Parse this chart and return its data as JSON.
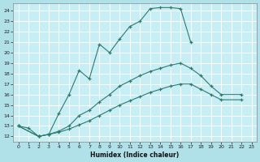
{
  "xlabel": "Humidex (Indice chaleur)",
  "bg_color": "#b0e0e8",
  "plot_bg_color": "#c8eef5",
  "line_color": "#2d7a6e",
  "grid_color": "#ffffff",
  "xlim": [
    -0.5,
    23.5
  ],
  "ylim": [
    11.5,
    24.7
  ],
  "xticks": [
    0,
    1,
    2,
    3,
    4,
    5,
    6,
    7,
    8,
    9,
    10,
    11,
    12,
    13,
    14,
    15,
    16,
    17,
    18,
    19,
    20,
    21,
    22,
    23
  ],
  "yticks": [
    12,
    13,
    14,
    15,
    16,
    17,
    18,
    19,
    20,
    21,
    22,
    23,
    24
  ],
  "line1_x": [
    0,
    1,
    2,
    3,
    4,
    5,
    6,
    7,
    8,
    9,
    10,
    11,
    12,
    13,
    14,
    15,
    16,
    17
  ],
  "line1_y": [
    13.0,
    12.8,
    12.0,
    12.2,
    14.2,
    16.0,
    18.3,
    17.5,
    20.8,
    20.0,
    21.3,
    22.5,
    23.0,
    24.2,
    24.3,
    24.3,
    24.2,
    21.0
  ],
  "line2_x": [
    0,
    2,
    3,
    4,
    5,
    6,
    7,
    8,
    9,
    10,
    11,
    12,
    13,
    14,
    15,
    16,
    17,
    18,
    19,
    20,
    22
  ],
  "line2_y": [
    13.0,
    12.0,
    12.2,
    12.5,
    13.0,
    14.0,
    14.5,
    15.3,
    16.0,
    16.8,
    17.3,
    17.8,
    18.2,
    18.5,
    18.8,
    19.0,
    18.5,
    17.8,
    16.8,
    16.0,
    16.0
  ],
  "line3_x": [
    0,
    2,
    3,
    4,
    5,
    6,
    7,
    8,
    9,
    10,
    11,
    12,
    13,
    14,
    15,
    16,
    17,
    18,
    19,
    20,
    22
  ],
  "line3_y": [
    13.0,
    12.0,
    12.2,
    12.4,
    12.7,
    13.1,
    13.5,
    14.0,
    14.5,
    15.0,
    15.4,
    15.8,
    16.2,
    16.5,
    16.8,
    17.0,
    17.0,
    16.5,
    16.0,
    15.5,
    15.5
  ]
}
